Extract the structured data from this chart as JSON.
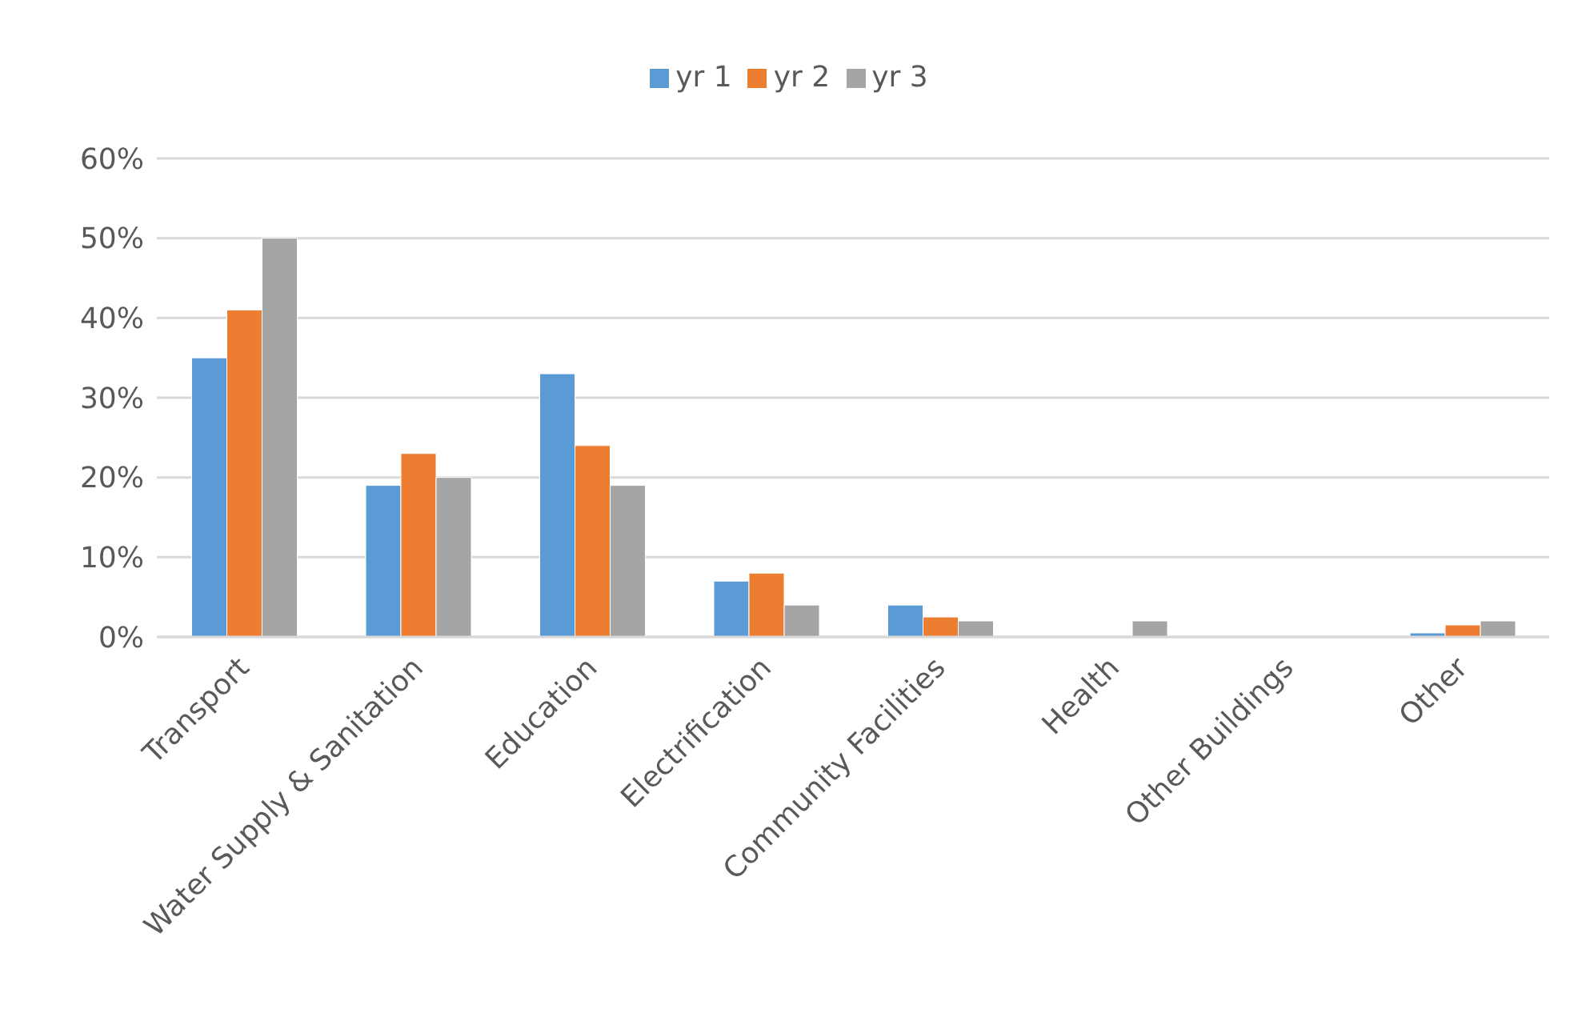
{
  "chart_data": {
    "type": "bar",
    "categories": [
      "Transport",
      "Water Supply & Sanitation",
      "Education",
      "Electrification",
      "Community Facilities",
      "Health",
      "Other Buildings",
      "Other"
    ],
    "series": [
      {
        "name": "yr 1",
        "color": "#5b9bd5",
        "values": [
          35,
          19,
          33,
          7,
          4,
          0,
          0,
          0.5
        ]
      },
      {
        "name": "yr 2",
        "color": "#ed7d31",
        "values": [
          41,
          23,
          24,
          8,
          2.5,
          0,
          0,
          1.5
        ]
      },
      {
        "name": "yr 3",
        "color": "#a5a5a5",
        "values": [
          50,
          20,
          19,
          4,
          2,
          2,
          0,
          2
        ]
      }
    ],
    "ylim": [
      0,
      60
    ],
    "yticks": [
      {
        "value": 0,
        "label": "0%"
      },
      {
        "value": 10,
        "label": "10%"
      },
      {
        "value": 20,
        "label": "20%"
      },
      {
        "value": 30,
        "label": "30%"
      },
      {
        "value": 40,
        "label": "40%"
      },
      {
        "value": 50,
        "label": "50%"
      },
      {
        "value": 60,
        "label": "60%"
      }
    ],
    "grid": "y",
    "legend": "top"
  }
}
